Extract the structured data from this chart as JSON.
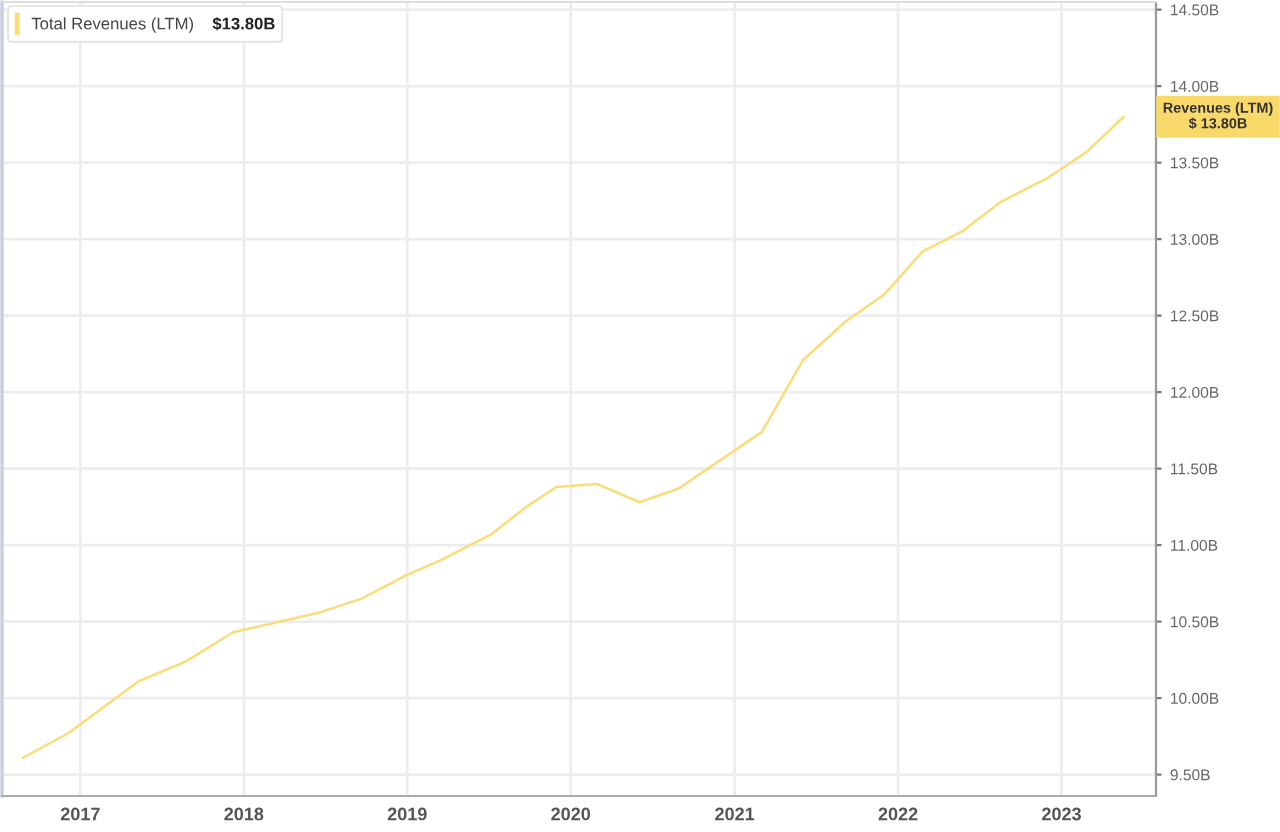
{
  "chart_data": {
    "type": "line",
    "x": [
      "2016-08-26",
      "2016-12-05",
      "2017-05-11",
      "2017-08-25",
      "2017-12-08",
      "2018-06-20",
      "2018-09-21",
      "2018-12-28",
      "2019-03-16",
      "2019-07-07",
      "2019-09-24",
      "2019-11-30",
      "2020-02-28",
      "2020-06-03",
      "2020-08-29",
      "2021-03-03",
      "2021-06-03",
      "2021-09-05",
      "2021-12-02",
      "2022-02-25",
      "2022-05-24",
      "2022-08-16",
      "2022-12-01",
      "2023-02-26",
      "2023-05-20"
    ],
    "series": [
      {
        "name": "Total Revenues (LTM)",
        "color": "#fcdc78",
        "values": [
          9.61,
          9.77,
          10.11,
          10.24,
          10.43,
          10.56,
          10.65,
          10.8,
          10.9,
          11.07,
          11.25,
          11.38,
          11.4,
          11.28,
          11.37,
          11.74,
          12.21,
          12.46,
          12.64,
          12.92,
          13.05,
          13.24,
          13.4,
          13.57,
          13.8
        ]
      }
    ],
    "xlim": [
      "2016-07-10",
      "2023-07-31"
    ],
    "xticks": [
      "2017",
      "2018",
      "2019",
      "2020",
      "2021",
      "2022",
      "2023"
    ],
    "ylim": [
      9.36,
      14.55
    ],
    "yticks": [
      {
        "value": 9.5,
        "label": "9.50B"
      },
      {
        "value": 10.0,
        "label": "10.00B"
      },
      {
        "value": 10.5,
        "label": "10.50B"
      },
      {
        "value": 11.0,
        "label": "11.00B"
      },
      {
        "value": 11.5,
        "label": "11.50B"
      },
      {
        "value": 12.0,
        "label": "12.00B"
      },
      {
        "value": 12.5,
        "label": "12.50B"
      },
      {
        "value": 13.0,
        "label": "13.00B"
      },
      {
        "value": 13.5,
        "label": "13.50B"
      },
      {
        "value": 14.0,
        "label": "14.00B"
      },
      {
        "value": 14.5,
        "label": "14.50B"
      }
    ],
    "grid": true,
    "legend": "top left",
    "annotations": [
      "$13.80B",
      "Revenues (LTM)\n$ 13.80B"
    ]
  }
}
